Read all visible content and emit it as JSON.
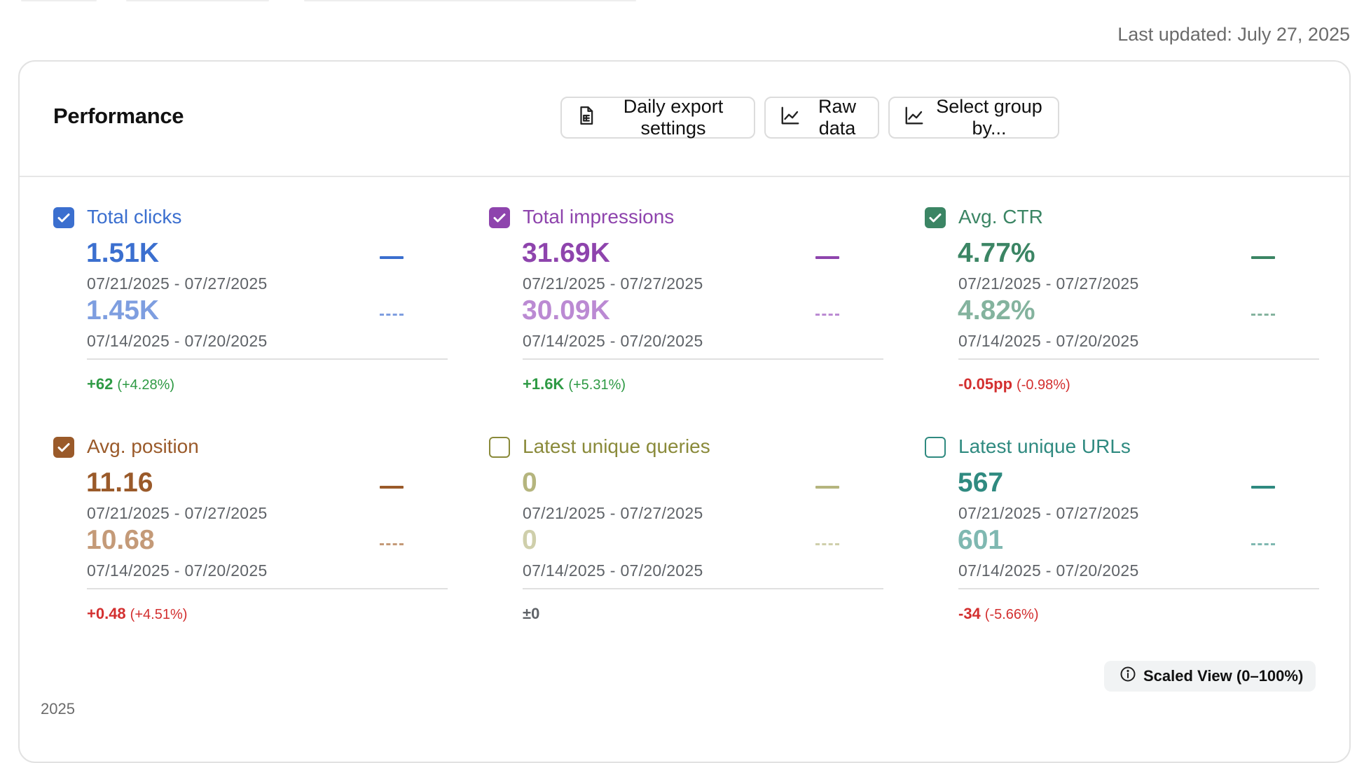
{
  "last_updated": "Last updated: July 27, 2025",
  "card": {
    "title": "Performance",
    "buttons": {
      "daily_export": "Daily export settings",
      "raw_data": "Raw data",
      "select_group": "Select group by..."
    }
  },
  "metrics": [
    {
      "label": "Total clicks",
      "checked": true,
      "color": "#3b6fcf",
      "light_color": "#7e9ee0",
      "current_value": "1.51K",
      "current_range": "07/21/2025 - 07/27/2025",
      "previous_value": "1.45K",
      "previous_range": "07/14/2025 - 07/20/2025",
      "change": "+62",
      "change_pct": "(+4.28%)",
      "change_color": "#2e9a44"
    },
    {
      "label": "Total impressions",
      "checked": true,
      "color": "#8e44ad",
      "light_color": "#bb8ad3",
      "current_value": "31.69K",
      "current_range": "07/21/2025 - 07/27/2025",
      "previous_value": "30.09K",
      "previous_range": "07/14/2025 - 07/20/2025",
      "change": "+1.6K",
      "change_pct": "(+5.31%)",
      "change_color": "#2e9a44"
    },
    {
      "label": "Avg. CTR",
      "checked": true,
      "color": "#3b8564",
      "light_color": "#84b39e",
      "current_value": "4.77%",
      "current_range": "07/21/2025 - 07/27/2025",
      "previous_value": "4.82%",
      "previous_range": "07/14/2025 - 07/20/2025",
      "change": "-0.05pp",
      "change_pct": "(-0.98%)",
      "change_color": "#d32f2f"
    },
    {
      "label": "Avg. position",
      "checked": true,
      "color": "#9a5a2a",
      "light_color": "#c49a78",
      "current_value": "11.16",
      "current_range": "07/21/2025 - 07/27/2025",
      "previous_value": "10.68",
      "previous_range": "07/14/2025 - 07/20/2025",
      "change": "+0.48",
      "change_pct": "(+4.51%)",
      "change_color": "#d32f2f"
    },
    {
      "label": "Latest unique queries",
      "checked": false,
      "color": "#8a8a3a",
      "light_color": "#c9c99c",
      "value_color": "#b5b57e",
      "value2_color": "#cfcfab",
      "current_value": "0",
      "current_range": "07/21/2025 - 07/27/2025",
      "previous_value": "0",
      "previous_range": "07/14/2025 - 07/20/2025",
      "change": "±0",
      "change_pct": "",
      "change_color": "#5f6368"
    },
    {
      "label": "Latest unique URLs",
      "checked": false,
      "color": "#2f8a80",
      "light_color": "#7fb8b1",
      "current_value": "567",
      "current_range": "07/21/2025 - 07/27/2025",
      "previous_value": "601",
      "previous_range": "07/14/2025 - 07/20/2025",
      "change": "-34",
      "change_pct": "(-5.66%)",
      "change_color": "#d32f2f"
    }
  ],
  "scaled_view": "Scaled View (0–100%)",
  "year_label": "2025"
}
